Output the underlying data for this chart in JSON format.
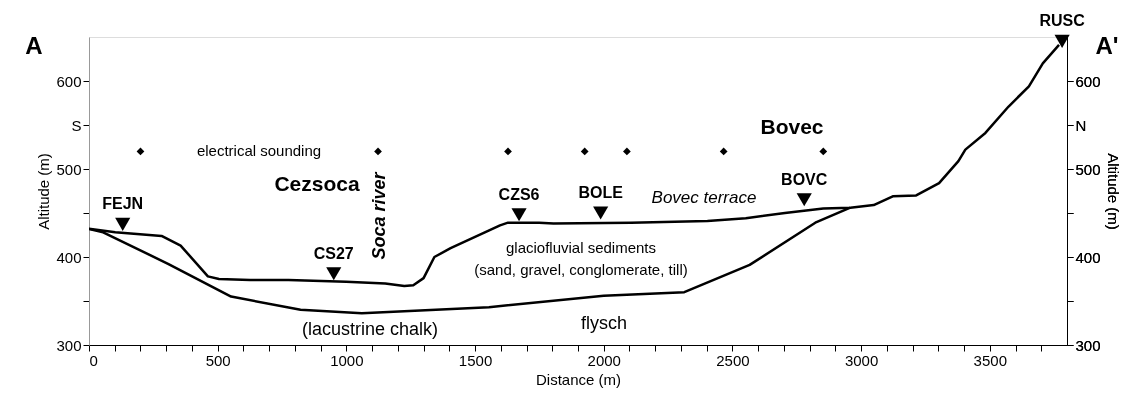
{
  "chart_data": {
    "type": "line",
    "xlabel": "Distance (m)",
    "ylabel": "Altitude (m)",
    "y2label": "Altitude (m)",
    "xlim": [
      0,
      3800
    ],
    "ylim": [
      300,
      650
    ],
    "y2lim": [
      300,
      650
    ],
    "xticks": [
      0,
      {
        "value": 100,
        "label": null
      },
      {
        "value": 200,
        "label": null
      },
      {
        "value": 300,
        "label": null
      },
      {
        "value": 400,
        "label": null
      },
      500,
      {
        "value": 600,
        "label": null
      },
      {
        "value": 700,
        "label": null
      },
      {
        "value": 800,
        "label": null
      },
      {
        "value": 900,
        "label": null
      },
      1000,
      {
        "value": 1100,
        "label": null
      },
      {
        "value": 1200,
        "label": null
      },
      {
        "value": 1300,
        "label": null
      },
      {
        "value": 1400,
        "label": null
      },
      1500,
      {
        "value": 1600,
        "label": null
      },
      {
        "value": 1700,
        "label": null
      },
      {
        "value": 1800,
        "label": null
      },
      {
        "value": 1900,
        "label": null
      },
      2000,
      {
        "value": 2100,
        "label": null
      },
      {
        "value": 2200,
        "label": null
      },
      {
        "value": 2300,
        "label": null
      },
      {
        "value": 2400,
        "label": null
      },
      2500,
      {
        "value": 2600,
        "label": null
      },
      {
        "value": 2700,
        "label": null
      },
      {
        "value": 2800,
        "label": null
      },
      {
        "value": 2900,
        "label": null
      },
      3000,
      {
        "value": 3100,
        "label": null
      },
      {
        "value": 3200,
        "label": null
      },
      {
        "value": 3300,
        "label": null
      },
      {
        "value": 3400,
        "label": null
      },
      3500,
      {
        "value": 3600,
        "label": null
      },
      {
        "value": 3700,
        "label": null
      }
    ],
    "yticks": [
      300,
      {
        "value": 350,
        "label": null
      },
      400,
      {
        "value": 450,
        "label": null
      },
      500,
      {
        "value": 550,
        "label": "S"
      },
      600
    ],
    "y2ticks": [
      300,
      {
        "value": 350,
        "label": null
      },
      400,
      {
        "value": 450,
        "label": null
      },
      500,
      {
        "value": 550,
        "label": "N"
      },
      600
    ],
    "grid": false,
    "series": [
      {
        "type": "line",
        "color": "#000000",
        "line_style": "solid",
        "x": [
          0,
          102,
          282,
          356,
          462,
          505,
          626,
          775,
          999,
          1151,
          1225,
          1260,
          1300,
          1342,
          1405,
          1538,
          1597,
          1628,
          1749,
          1805,
          2106,
          2403,
          2552,
          2704,
          2853,
          2958,
          3049,
          3123,
          3214,
          3303,
          3378,
          3405,
          3483,
          3573,
          3652,
          3706,
          3769
        ],
        "values": [
          432,
          428,
          424,
          413,
          378,
          375,
          374,
          374,
          372,
          370,
          367,
          368,
          376,
          400,
          410,
          428,
          436,
          439,
          439,
          438,
          439,
          441,
          444,
          450,
          455,
          456,
          459,
          469,
          470,
          484,
          509,
          522,
          541,
          571,
          594,
          620,
          641
        ]
      },
      {
        "type": "line",
        "color": "#000000",
        "line_style": "solid",
        "x": [
          0,
          55,
          309,
          552,
          822,
          1060,
          1554,
          2000,
          2313,
          2567,
          2822,
          2958
        ],
        "values": [
          432,
          428,
          392,
          355,
          340,
          336,
          343,
          356,
          360,
          391,
          439,
          456
        ]
      },
      {
        "type": "scatter",
        "color": "#000000",
        "marker": "diamond",
        "x": [
          200,
          1123,
          1628,
          1926,
          2090,
          2466,
          2853
        ],
        "values": [
          520,
          520,
          520,
          520,
          520,
          520,
          520
        ]
      },
      {
        "type": "scatter",
        "color": "#000000",
        "marker": "triangle",
        "axis": "y2",
        "x": [
          131,
          951,
          1671,
          1988,
          2779,
          3781
        ],
        "values": [
          437,
          381,
          448,
          450,
          465,
          645
        ],
        "value_labels": [
          "FEJN",
          "CS27",
          "CZS6",
          "BOLE",
          "BOVC",
          "RUSC"
        ]
      }
    ],
    "annotations": [
      "electrical sounding",
      "Cezsoca",
      "Soca river",
      "Bovec terrace",
      "Bovec",
      "glaciofluvial sediments",
      "(sand, gravel, conglomerate, till)",
      "(lacustrine chalk)",
      "flysch",
      "A",
      "A'"
    ]
  }
}
